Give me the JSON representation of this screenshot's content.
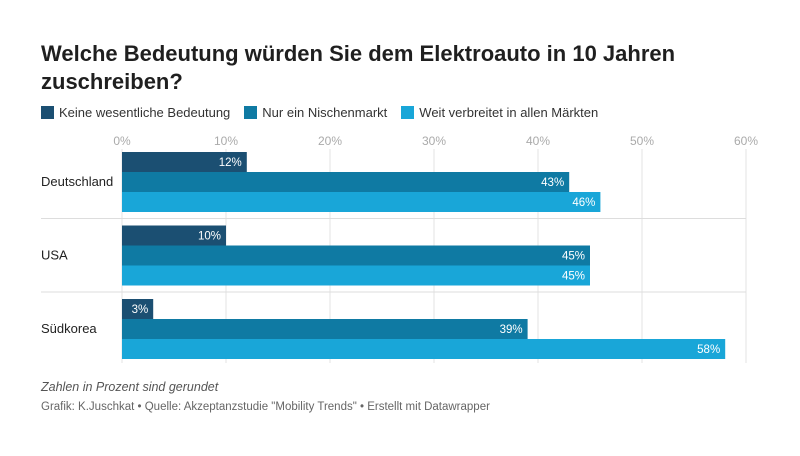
{
  "title": "Welche Bedeutung würden Sie dem Elektroauto in 10 Jahren zuschreiben?",
  "note": "Zahlen in Prozent sind gerundet",
  "credit": "Grafik: K.Juschkat • Quelle: Akzeptanzstudie \"Mobility Trends\" • Erstellt mit Datawrapper",
  "chart_data": {
    "type": "bar",
    "orientation": "horizontal",
    "title": "Welche Bedeutung würden Sie dem Elektroauto in 10 Jahren zuschreiben?",
    "xlabel": "",
    "ylabel": "",
    "xlim": [
      0,
      60
    ],
    "ticks": [
      0,
      10,
      20,
      30,
      40,
      50,
      60
    ],
    "tick_suffix": "%",
    "grid": true,
    "legend_position": "top-left",
    "categories": [
      "Deutschland",
      "USA",
      "Südkorea"
    ],
    "series": [
      {
        "name": "Keine wesentliche Bedeutung",
        "color": "#1b4f72",
        "values": [
          12,
          10,
          3
        ]
      },
      {
        "name": "Nur ein Nischenmarkt",
        "color": "#0f7aa3",
        "values": [
          43,
          45,
          39
        ]
      },
      {
        "name": "Weit verbreitet in allen Märkten",
        "color": "#19a6d8",
        "values": [
          46,
          45,
          58
        ]
      }
    ]
  }
}
